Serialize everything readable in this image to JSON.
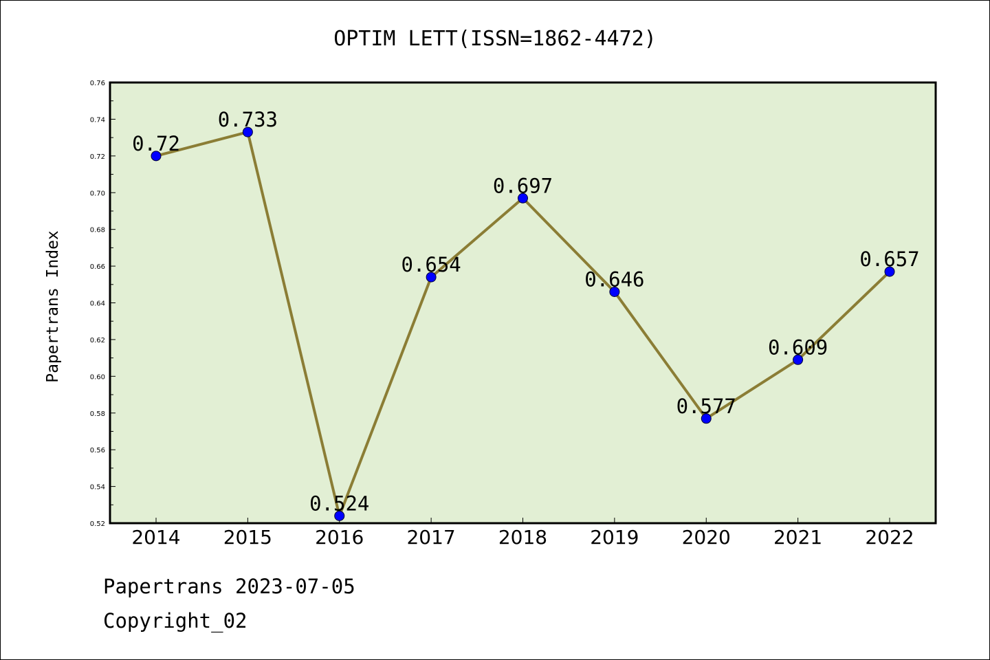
{
  "chart_data": {
    "type": "line",
    "title": "OPTIM LETT(ISSN=1862-4472)",
    "xlabel": "",
    "ylabel": "Papertrans Index",
    "categories": [
      "2014",
      "2015",
      "2016",
      "2017",
      "2018",
      "2019",
      "2020",
      "2021",
      "2022"
    ],
    "values": [
      0.72,
      0.733,
      0.524,
      0.654,
      0.697,
      0.646,
      0.577,
      0.609,
      0.657
    ],
    "data_labels": [
      "0.72",
      "0.733",
      "0.524",
      "0.654",
      "0.697",
      "0.646",
      "0.577",
      "0.609",
      "0.657"
    ],
    "ylim": [
      0.52,
      0.76
    ],
    "yticks": [
      "0.52",
      "0.54",
      "0.56",
      "0.58",
      "0.60",
      "0.62",
      "0.64",
      "0.66",
      "0.68",
      "0.70",
      "0.72",
      "0.74",
      "0.76"
    ],
    "grid": false,
    "colors": {
      "line": "#8b7d35",
      "marker": "#0000ff",
      "plot_background": "#e2efd4"
    }
  },
  "footer": {
    "line1": "Papertrans 2023-07-05",
    "line2": "Copyright_02"
  }
}
